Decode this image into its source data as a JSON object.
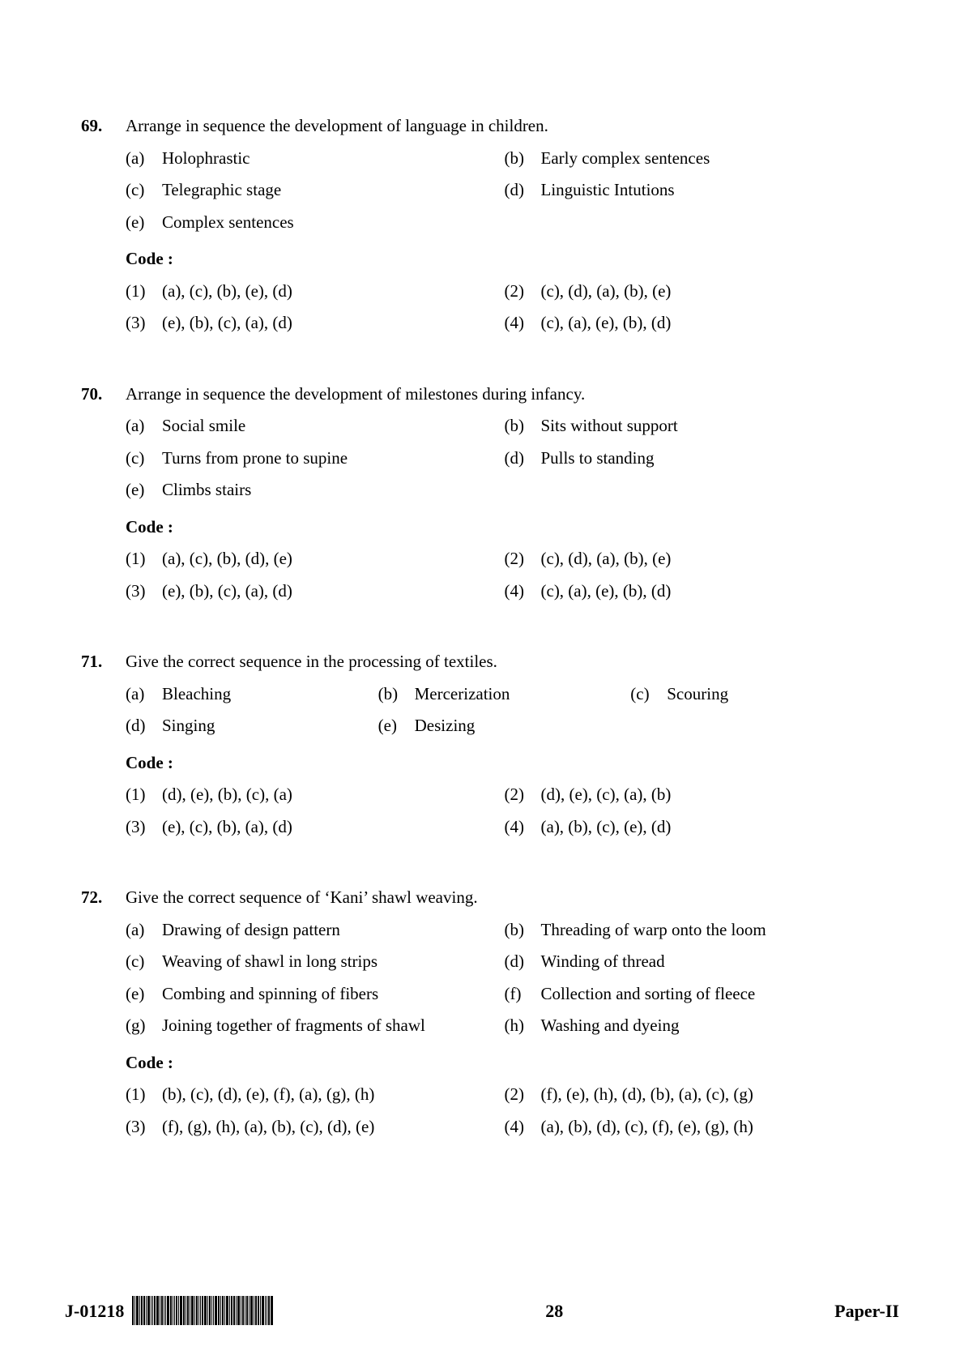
{
  "page_number": "28",
  "doc_code": "J-01218",
  "paper_label": "Paper-II",
  "code_label": "Code :",
  "questions": [
    {
      "num": "69.",
      "stem": "Arrange in sequence the development of language in children.",
      "option_layout": "2col",
      "options": [
        {
          "label": "(a)",
          "text": "Holophrastic"
        },
        {
          "label": "(b)",
          "text": "Early complex sentences"
        },
        {
          "label": "(c)",
          "text": "Telegraphic stage"
        },
        {
          "label": "(d)",
          "text": "Linguistic Intutions"
        },
        {
          "label": "(e)",
          "text": "Complex sentences"
        }
      ],
      "codes": [
        {
          "label": "(1)",
          "text": "(a), (c), (b), (e), (d)"
        },
        {
          "label": "(2)",
          "text": "(c), (d), (a), (b), (e)"
        },
        {
          "label": "(3)",
          "text": "(e), (b), (c), (a), (d)"
        },
        {
          "label": "(4)",
          "text": "(c), (a), (e), (b), (d)"
        }
      ]
    },
    {
      "num": "70.",
      "stem": "Arrange in sequence the development of milestones during infancy.",
      "option_layout": "2col",
      "options": [
        {
          "label": "(a)",
          "text": "Social smile"
        },
        {
          "label": "(b)",
          "text": "Sits without support"
        },
        {
          "label": "(c)",
          "text": "Turns from prone to supine"
        },
        {
          "label": "(d)",
          "text": "Pulls to standing"
        },
        {
          "label": "(e)",
          "text": "Climbs stairs"
        }
      ],
      "codes": [
        {
          "label": "(1)",
          "text": "(a), (c), (b), (d), (e)"
        },
        {
          "label": "(2)",
          "text": "(c), (d), (a), (b), (e)"
        },
        {
          "label": "(3)",
          "text": "(e), (b), (c), (a), (d)"
        },
        {
          "label": "(4)",
          "text": "(c), (a), (e), (b), (d)"
        }
      ]
    },
    {
      "num": "71.",
      "stem": "Give the correct sequence in the processing of textiles.",
      "option_layout": "3col",
      "options": [
        {
          "label": "(a)",
          "text": "Bleaching"
        },
        {
          "label": "(b)",
          "text": "Mercerization"
        },
        {
          "label": "(c)",
          "text": "Scouring"
        },
        {
          "label": "(d)",
          "text": "Singing"
        },
        {
          "label": "(e)",
          "text": "Desizing"
        }
      ],
      "codes": [
        {
          "label": "(1)",
          "text": "(d), (e), (b), (c), (a)"
        },
        {
          "label": "(2)",
          "text": "(d), (e), (c), (a), (b)"
        },
        {
          "label": "(3)",
          "text": "(e), (c), (b), (a), (d)"
        },
        {
          "label": "(4)",
          "text": "(a), (b), (c), (e), (d)"
        }
      ]
    },
    {
      "num": "72.",
      "stem": "Give the correct sequence of ‘Kani’ shawl weaving.",
      "option_layout": "2col",
      "options": [
        {
          "label": "(a)",
          "text": "Drawing of design pattern"
        },
        {
          "label": "(b)",
          "text": "Threading of warp onto the loom"
        },
        {
          "label": "(c)",
          "text": "Weaving of shawl in long strips"
        },
        {
          "label": "(d)",
          "text": "Winding of thread"
        },
        {
          "label": "(e)",
          "text": "Combing and spinning of fibers"
        },
        {
          "label": "(f)",
          "text": "Collection and sorting of fleece"
        },
        {
          "label": "(g)",
          "text": "Joining together of fragments of shawl"
        },
        {
          "label": "(h)",
          "text": "Washing and dyeing"
        }
      ],
      "codes": [
        {
          "label": "(1)",
          "text": "(b), (c), (d), (e), (f), (a), (g), (h)"
        },
        {
          "label": "(2)",
          "text": "(f), (e), (h), (d), (b), (a), (c), (g)"
        },
        {
          "label": "(3)",
          "text": "(f), (g), (h), (a), (b), (c), (d), (e)"
        },
        {
          "label": "(4)",
          "text": "(a), (b), (d), (c), (f), (e), (g), (h)"
        }
      ]
    }
  ],
  "barcode_widths": [
    2,
    1,
    3,
    1,
    2,
    2,
    1,
    3,
    1,
    1,
    2,
    3,
    1,
    2,
    1,
    1,
    3,
    2,
    1,
    1,
    2,
    1,
    3,
    2,
    1,
    2,
    1,
    3,
    1,
    2,
    1,
    1,
    2,
    3,
    1,
    2,
    1,
    1,
    3,
    2,
    1,
    2,
    1,
    3,
    1,
    2,
    2,
    1,
    3,
    1,
    2,
    1,
    2,
    1,
    3,
    1,
    2,
    2,
    1,
    3,
    1,
    1,
    2,
    3
  ]
}
